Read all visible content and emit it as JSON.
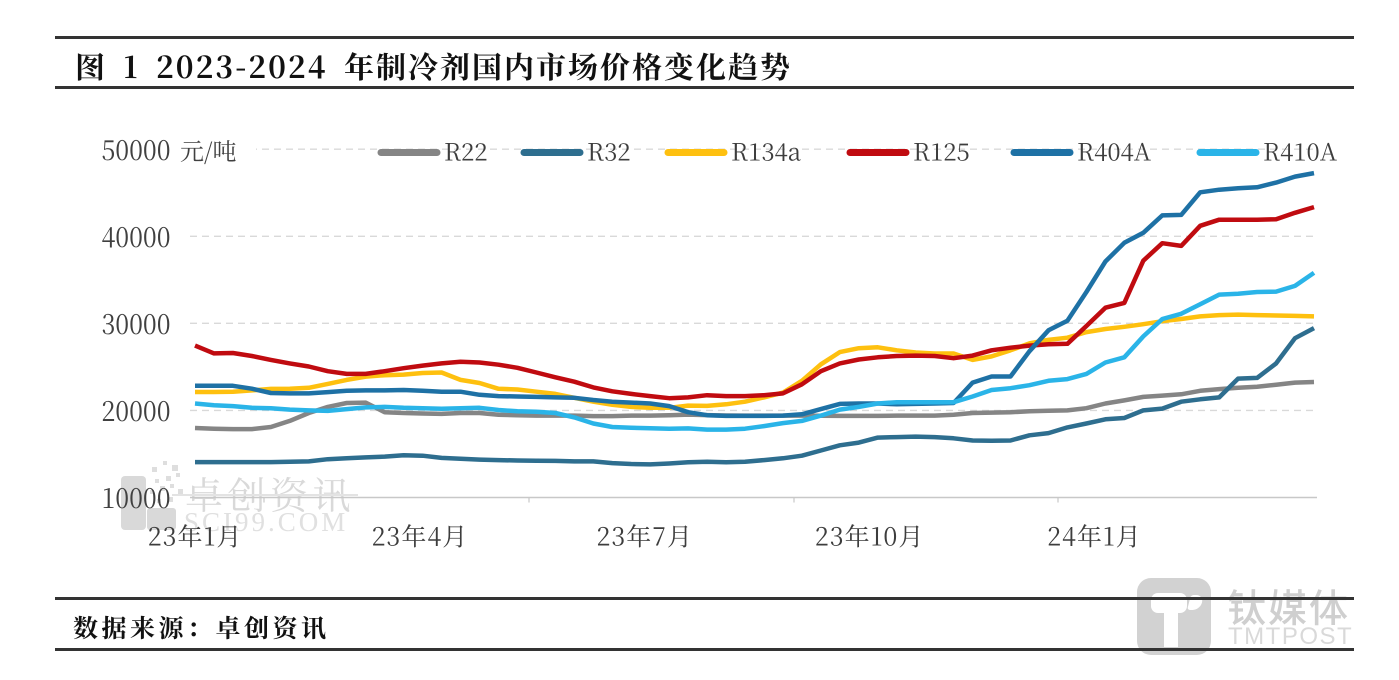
{
  "title": "图 1 2023-2024 年制冷剂国内市场价格变化趋势",
  "chart_data": {
    "type": "line",
    "title": "2023-2024 年制冷剂国内市场价格变化趋势",
    "ylabel": "元/吨",
    "ylim": [
      10000,
      50000
    ],
    "yticks": [
      50000,
      40000,
      30000,
      20000,
      10000
    ],
    "grid": "horizontal-dashed",
    "legend_position": "top",
    "xtick_labels": [
      "23年1月",
      "23年4月",
      "23年7月",
      "23年10月",
      "24年1月"
    ],
    "xtick_month_offsets": [
      0,
      3,
      6,
      9,
      12
    ],
    "x_span_months": 14.93,
    "series": [
      {
        "name": "R22",
        "color": "#858585",
        "values": [
          17980,
          17900,
          17860,
          17860,
          18100,
          18800,
          19700,
          20400,
          20850,
          20900,
          19800,
          19700,
          19650,
          19600,
          19700,
          19700,
          19500,
          19450,
          19400,
          19400,
          19400,
          19350,
          19350,
          19400,
          19400,
          19450,
          19520,
          19460,
          19420,
          19400,
          19400,
          19400,
          19400,
          19380,
          19370,
          19370,
          19370,
          19400,
          19400,
          19400,
          19500,
          19700,
          19750,
          19800,
          19900,
          19970,
          20000,
          20250,
          20800,
          21150,
          21550,
          21700,
          21850,
          22250,
          22450,
          22600,
          22720,
          22950,
          23200,
          23270
        ]
      },
      {
        "name": "R32",
        "color": "#2E6E8F",
        "values": [
          14060,
          14060,
          14060,
          14060,
          14060,
          14100,
          14150,
          14400,
          14500,
          14600,
          14700,
          14850,
          14800,
          14550,
          14450,
          14350,
          14300,
          14250,
          14220,
          14200,
          14150,
          14150,
          13950,
          13850,
          13800,
          13900,
          14050,
          14100,
          14050,
          14100,
          14300,
          14500,
          14800,
          15400,
          16000,
          16300,
          16880,
          16940,
          16990,
          16940,
          16800,
          16550,
          16520,
          16550,
          17140,
          17400,
          18050,
          18500,
          18980,
          19130,
          20000,
          20210,
          21000,
          21280,
          21500,
          23650,
          23730,
          25400,
          28300,
          29450
        ]
      },
      {
        "name": "R134a",
        "color": "#FEC00F",
        "values": [
          22120,
          22120,
          22150,
          22300,
          22470,
          22500,
          22600,
          23050,
          23500,
          23880,
          24050,
          24120,
          24300,
          24350,
          23500,
          23150,
          22480,
          22400,
          22150,
          21900,
          21450,
          21000,
          20650,
          20400,
          20300,
          20300,
          20550,
          20520,
          20700,
          21000,
          21500,
          22050,
          23400,
          25300,
          26700,
          27150,
          27250,
          26900,
          26650,
          26540,
          26540,
          25800,
          26200,
          26900,
          27700,
          28100,
          28350,
          29000,
          29350,
          29600,
          29900,
          30250,
          30500,
          30800,
          30950,
          31000,
          30950,
          30900,
          30850,
          30800
        ]
      },
      {
        "name": "R125",
        "color": "#C00B10",
        "values": [
          27450,
          26550,
          26600,
          26250,
          25800,
          25400,
          25050,
          24500,
          24200,
          24200,
          24500,
          24850,
          25150,
          25400,
          25600,
          25500,
          25250,
          24900,
          24350,
          23800,
          23300,
          22650,
          22200,
          21900,
          21650,
          21400,
          21500,
          21750,
          21650,
          21650,
          21750,
          21950,
          23000,
          24500,
          25400,
          25850,
          26100,
          26250,
          26300,
          26250,
          26000,
          26300,
          26900,
          27200,
          27450,
          27600,
          27650,
          29700,
          31800,
          32350,
          37200,
          39200,
          38900,
          41200,
          41900,
          41900,
          41900,
          41950,
          42700,
          43350
        ]
      },
      {
        "name": "R404A",
        "color": "#1E71A5",
        "values": [
          22830,
          22830,
          22830,
          22500,
          22000,
          21950,
          21950,
          22100,
          22250,
          22300,
          22300,
          22350,
          22250,
          22150,
          22150,
          21800,
          21650,
          21600,
          21550,
          21500,
          21450,
          21200,
          21000,
          20900,
          20800,
          20500,
          19800,
          19450,
          19370,
          19370,
          19370,
          19400,
          19550,
          20150,
          20750,
          20800,
          20800,
          20700,
          20750,
          20800,
          20850,
          23200,
          23900,
          23900,
          26800,
          29200,
          30300,
          33600,
          37100,
          39250,
          40400,
          42400,
          42450,
          45050,
          45350,
          45510,
          45630,
          46160,
          46850,
          47260
        ]
      },
      {
        "name": "R410A",
        "color": "#2AB4E8",
        "values": [
          20800,
          20600,
          20500,
          20300,
          20250,
          20100,
          20000,
          19950,
          20150,
          20350,
          20400,
          20300,
          20250,
          20200,
          20250,
          20300,
          20050,
          19900,
          19850,
          19700,
          19200,
          18500,
          18100,
          18000,
          17950,
          17900,
          17930,
          17800,
          17800,
          17900,
          18200,
          18550,
          18800,
          19400,
          20100,
          20400,
          20800,
          20950,
          20950,
          20950,
          20950,
          21600,
          22350,
          22550,
          22900,
          23400,
          23600,
          24200,
          25500,
          26100,
          28500,
          30500,
          31100,
          32200,
          33300,
          33400,
          33600,
          33650,
          34300,
          35800
        ]
      }
    ]
  },
  "watermark": {
    "cn": "卓创资讯",
    "en": "SCI99.COM"
  },
  "footer": {
    "source_label": "数据来源：卓创资讯"
  },
  "brand": {
    "cn": "钛媒体",
    "en": "TMTPOST"
  }
}
